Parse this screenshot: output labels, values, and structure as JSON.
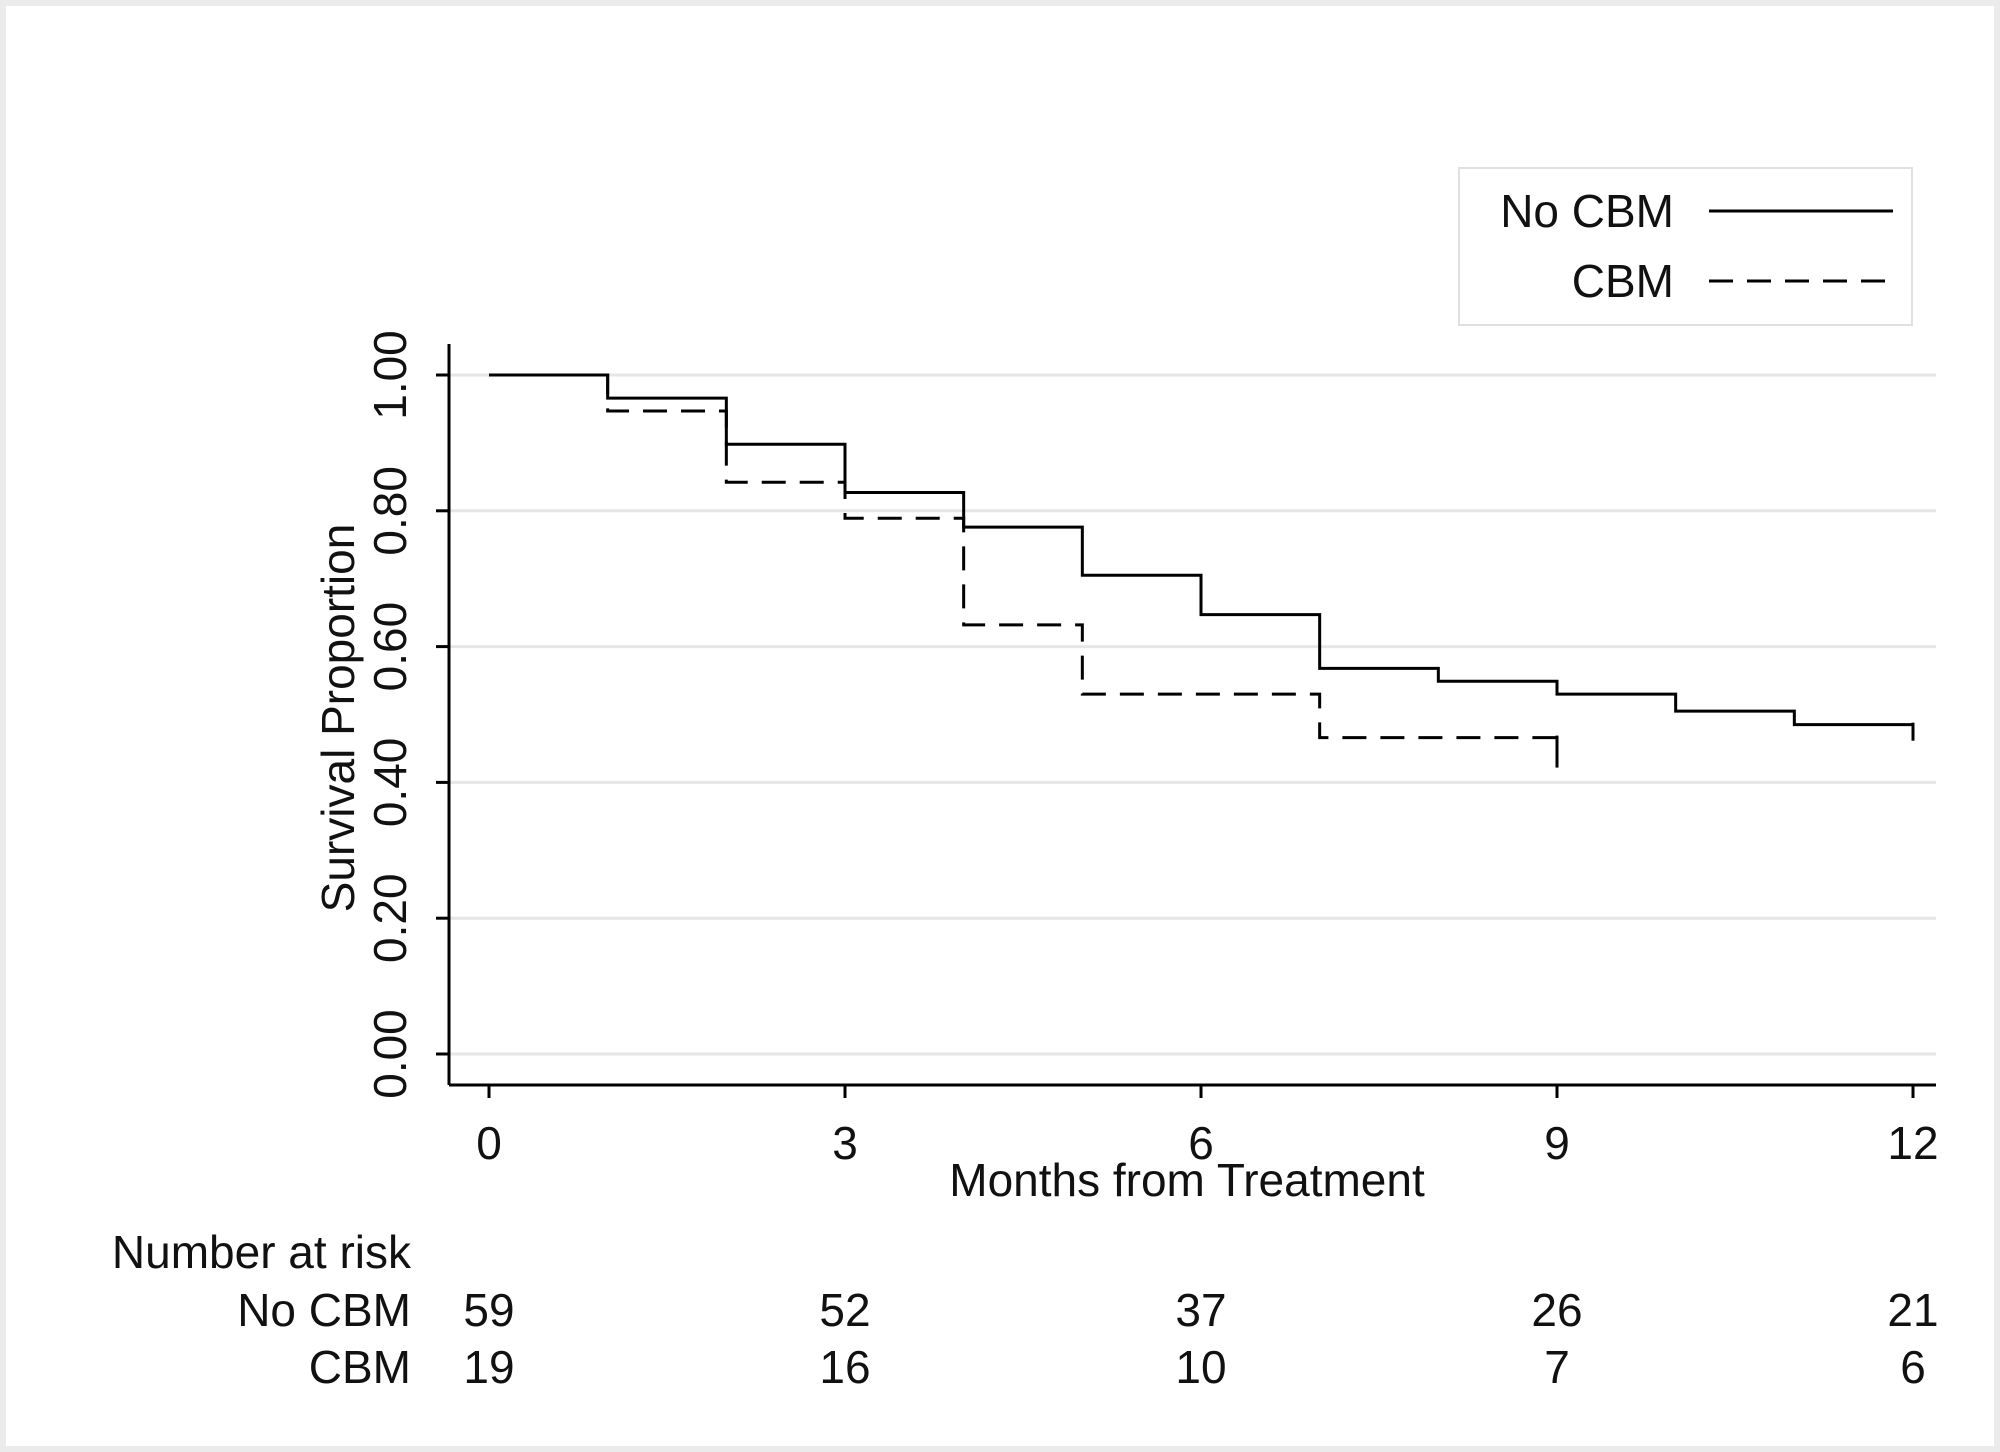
{
  "chart_data": {
    "type": "line",
    "subtype": "kaplan-meier-step",
    "title": "",
    "xlabel": "Months from Treatment",
    "ylabel": "Survival Proportion",
    "xlim": [
      0,
      12
    ],
    "ylim": [
      0,
      1
    ],
    "xticks": [
      0,
      3,
      6,
      9,
      12
    ],
    "x_tick_labels": [
      "0",
      "3",
      "6",
      "9",
      "12"
    ],
    "yticks": [
      0,
      0.2,
      0.4,
      0.6,
      0.8,
      1.0
    ],
    "y_tick_labels": [
      "0.00",
      "0.20",
      "0.40",
      "0.60",
      "0.80",
      "1.00"
    ],
    "grid": "horizontal",
    "legend_position": "top-right",
    "series": [
      {
        "name": "No CBM",
        "line_style": "solid",
        "x": [
          0,
          1,
          2,
          3,
          4,
          5,
          6,
          7,
          8,
          9,
          10,
          11,
          12
        ],
        "y": [
          1.0,
          0.966,
          0.898,
          0.827,
          0.776,
          0.705,
          0.647,
          0.568,
          0.549,
          0.53,
          0.505,
          0.485,
          0.485
        ]
      },
      {
        "name": "CBM",
        "line_style": "dashed",
        "x": [
          0,
          1,
          2,
          3,
          4,
          5,
          6,
          7,
          8,
          9
        ],
        "y": [
          1.0,
          0.947,
          0.842,
          0.789,
          0.632,
          0.53,
          0.53,
          0.466,
          0.466,
          0.466
        ]
      }
    ],
    "risk_table": {
      "title": "Number at risk",
      "times": [
        0,
        3,
        6,
        9,
        12
      ],
      "rows": [
        {
          "label": "No CBM",
          "values": [
            "59",
            "52",
            "37",
            "26",
            "21"
          ]
        },
        {
          "label": "CBM",
          "values": [
            "19",
            "16",
            "10",
            "7",
            "6"
          ]
        }
      ]
    }
  }
}
